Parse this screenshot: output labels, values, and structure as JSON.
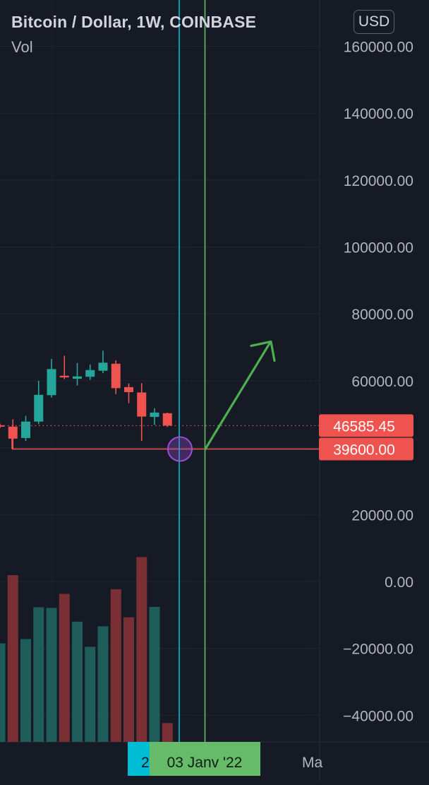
{
  "header": {
    "symbol_title": "Bitcoin / Dollar, 1W, COINBASE",
    "volume_label": "Vol",
    "currency_button": "USD"
  },
  "price_axis": {
    "ticks": [
      "160000.00",
      "140000.00",
      "120000.00",
      "100000.00",
      "80000.00",
      "60000.00",
      "20000.00",
      "0.00",
      "−20000.00",
      "−40000.00"
    ]
  },
  "price_tags": {
    "last_price": "46585.45",
    "support_level": "39600.00"
  },
  "time_axis": {
    "cursor_partial": "2",
    "cursor_date": "03 Janv '22",
    "next_label_partial": "Ma"
  },
  "colors": {
    "background": "#161a25",
    "bullish": "#26a69a",
    "bearish": "#ef5350",
    "bullish_volume": "#1f5d5a",
    "bearish_volume": "#7a2f35",
    "cyan_marker": "#00bcd4",
    "green_marker": "#66bb6a",
    "circle": "#9c4fd6"
  },
  "chart_data": {
    "type": "candlestick",
    "title": "Bitcoin / Dollar, 1W, COINBASE",
    "ylim": [
      -47500,
      172500
    ],
    "grid": true,
    "candles": [
      {
        "o": 46700,
        "h": 47200,
        "l": 45900,
        "c": 46400
      },
      {
        "o": 46300,
        "h": 48500,
        "l": 39600,
        "c": 42700
      },
      {
        "o": 42900,
        "h": 49500,
        "l": 42000,
        "c": 47800
      },
      {
        "o": 47800,
        "h": 60000,
        "l": 47000,
        "c": 55800
      },
      {
        "o": 55700,
        "h": 66500,
        "l": 55000,
        "c": 63500
      },
      {
        "o": 61500,
        "h": 67500,
        "l": 60500,
        "c": 61000
      },
      {
        "o": 60600,
        "h": 65300,
        "l": 58600,
        "c": 61300
      },
      {
        "o": 61200,
        "h": 64900,
        "l": 60300,
        "c": 63200
      },
      {
        "o": 63000,
        "h": 69000,
        "l": 62300,
        "c": 65400
      },
      {
        "o": 65100,
        "h": 66100,
        "l": 56000,
        "c": 57800
      },
      {
        "o": 58100,
        "h": 59200,
        "l": 53300,
        "c": 56600
      },
      {
        "o": 56500,
        "h": 59300,
        "l": 42000,
        "c": 49300
      },
      {
        "o": 49200,
        "h": 51800,
        "l": 46800,
        "c": 50500
      },
      {
        "o": 50300,
        "h": 50500,
        "l": 46200,
        "c": 46585.45
      }
    ],
    "volume": [
      {
        "v": -18500,
        "dir": "up"
      },
      {
        "v": 1900,
        "dir": "down"
      },
      {
        "v": -17200,
        "dir": "up"
      },
      {
        "v": -7700,
        "dir": "up"
      },
      {
        "v": -7900,
        "dir": "up"
      },
      {
        "v": -3700,
        "dir": "down"
      },
      {
        "v": -12000,
        "dir": "up"
      },
      {
        "v": -19500,
        "dir": "up"
      },
      {
        "v": -13400,
        "dir": "up"
      },
      {
        "v": -2300,
        "dir": "down"
      },
      {
        "v": -10700,
        "dir": "down"
      },
      {
        "v": 7300,
        "dir": "down"
      },
      {
        "v": -7600,
        "dir": "up"
      },
      {
        "v": -42300,
        "dir": "down"
      }
    ],
    "horizontal_levels": [
      46585.45,
      39600
    ],
    "annotations": {
      "circle_at_price": 39600,
      "arrow": {
        "from_price": 39600,
        "to_price": 71500
      }
    }
  }
}
